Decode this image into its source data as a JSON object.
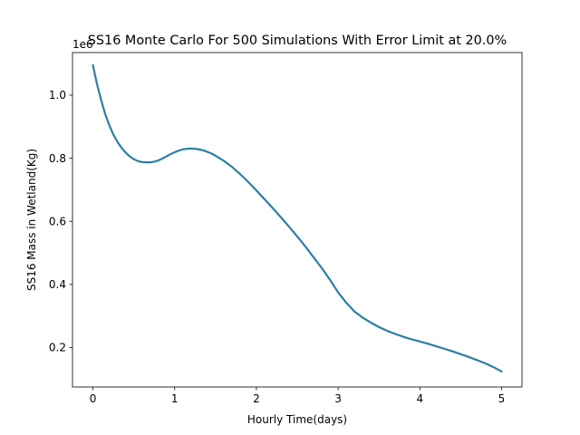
{
  "chart_data": {
    "type": "line",
    "title": "SS16 Monte Carlo For 500 Simulations With Error Limit at 20.0%",
    "xlabel": "Hourly Time(days)",
    "ylabel": "SS16 Mass in Wetland(Kg)",
    "y_offset_text": "1e6",
    "xlim": [
      -0.25,
      5.25
    ],
    "ylim": [
      0.075,
      1.135
    ],
    "x_ticks": [
      0,
      1,
      2,
      3,
      4,
      5
    ],
    "x_tick_labels": [
      "0",
      "1",
      "2",
      "3",
      "4",
      "5"
    ],
    "y_ticks": [
      0.2,
      0.4,
      0.6,
      0.8,
      1.0
    ],
    "y_tick_labels": [
      "0.2",
      "0.4",
      "0.6",
      "0.8",
      "1.0"
    ],
    "grid": false,
    "line_color": "#2c7fa3",
    "series": [
      {
        "x": [
          0,
          0.05,
          0.1,
          0.15,
          0.2,
          0.25,
          0.3,
          0.35,
          0.4,
          0.45,
          0.5,
          0.55,
          0.6,
          0.65,
          0.7,
          0.75,
          0.8,
          0.85,
          0.9,
          0.95,
          1.0,
          1.05,
          1.1,
          1.15,
          1.2,
          1.25,
          1.3,
          1.35,
          1.4,
          1.45,
          1.5,
          1.6,
          1.7,
          1.8,
          1.9,
          2.0,
          2.1,
          2.2,
          2.3,
          2.4,
          2.5,
          2.6,
          2.7,
          2.8,
          2.9,
          3.0,
          3.1,
          3.2,
          3.3,
          3.4,
          3.5,
          3.6,
          3.7,
          3.8,
          3.9,
          4.0,
          4.1,
          4.2,
          4.3,
          4.4,
          4.5,
          4.6,
          4.7,
          4.8,
          4.9,
          5.0
        ],
        "y": [
          1.095,
          1.035,
          0.985,
          0.94,
          0.905,
          0.875,
          0.852,
          0.833,
          0.818,
          0.806,
          0.797,
          0.791,
          0.788,
          0.787,
          0.787,
          0.789,
          0.793,
          0.799,
          0.806,
          0.813,
          0.819,
          0.824,
          0.828,
          0.83,
          0.831,
          0.83,
          0.828,
          0.825,
          0.82,
          0.815,
          0.808,
          0.792,
          0.773,
          0.75,
          0.725,
          0.698,
          0.67,
          0.642,
          0.613,
          0.583,
          0.552,
          0.52,
          0.486,
          0.452,
          0.415,
          0.375,
          0.342,
          0.314,
          0.295,
          0.279,
          0.265,
          0.253,
          0.243,
          0.234,
          0.226,
          0.219,
          0.212,
          0.204,
          0.196,
          0.188,
          0.179,
          0.17,
          0.16,
          0.15,
          0.138,
          0.124
        ]
      }
    ]
  }
}
